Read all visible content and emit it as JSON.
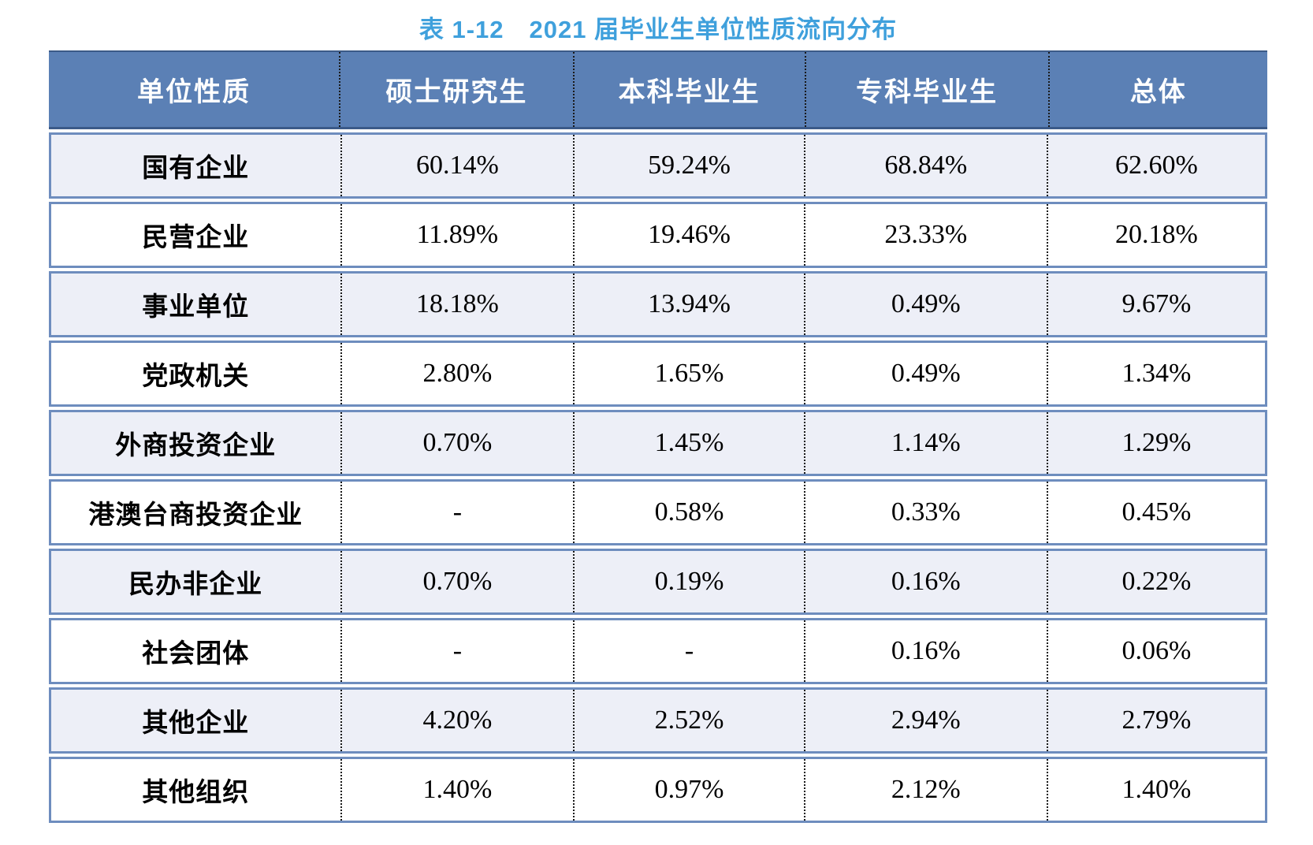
{
  "caption": "表 1-12　2021 届毕业生单位性质流向分布",
  "chart_data": {
    "type": "table",
    "title": "表 1-12　2021 届毕业生单位性质流向分布",
    "columns": [
      "单位性质",
      "硕士研究生",
      "本科毕业生",
      "专科毕业生",
      "总体"
    ],
    "rows": [
      {
        "label": "国有企业",
        "values": [
          "60.14%",
          "59.24%",
          "68.84%",
          "62.60%"
        ]
      },
      {
        "label": "民营企业",
        "values": [
          "11.89%",
          "19.46%",
          "23.33%",
          "20.18%"
        ]
      },
      {
        "label": "事业单位",
        "values": [
          "18.18%",
          "13.94%",
          "0.49%",
          "9.67%"
        ]
      },
      {
        "label": "党政机关",
        "values": [
          "2.80%",
          "1.65%",
          "0.49%",
          "1.34%"
        ]
      },
      {
        "label": "外商投资企业",
        "values": [
          "0.70%",
          "1.45%",
          "1.14%",
          "1.29%"
        ]
      },
      {
        "label": "港澳台商投资企业",
        "values": [
          "-",
          "0.58%",
          "0.33%",
          "0.45%"
        ]
      },
      {
        "label": "民办非企业",
        "values": [
          "0.70%",
          "0.19%",
          "0.16%",
          "0.22%"
        ]
      },
      {
        "label": "社会团体",
        "values": [
          "-",
          "-",
          "0.16%",
          "0.06%"
        ]
      },
      {
        "label": "其他企业",
        "values": [
          "4.20%",
          "2.52%",
          "2.94%",
          "2.79%"
        ]
      },
      {
        "label": "其他组织",
        "values": [
          "1.40%",
          "0.97%",
          "2.12%",
          "1.40%"
        ]
      }
    ]
  },
  "colors": {
    "title_text": "#3FA0DC",
    "header_bg": "#5B80B5",
    "header_edge": "#3B5A88",
    "header_text": "#FFFFFF",
    "row_border": "#6E8DBE",
    "alt_row_bg": "#EDEFF7",
    "row_bg": "#FFFFFF",
    "body_text": "#000000"
  }
}
